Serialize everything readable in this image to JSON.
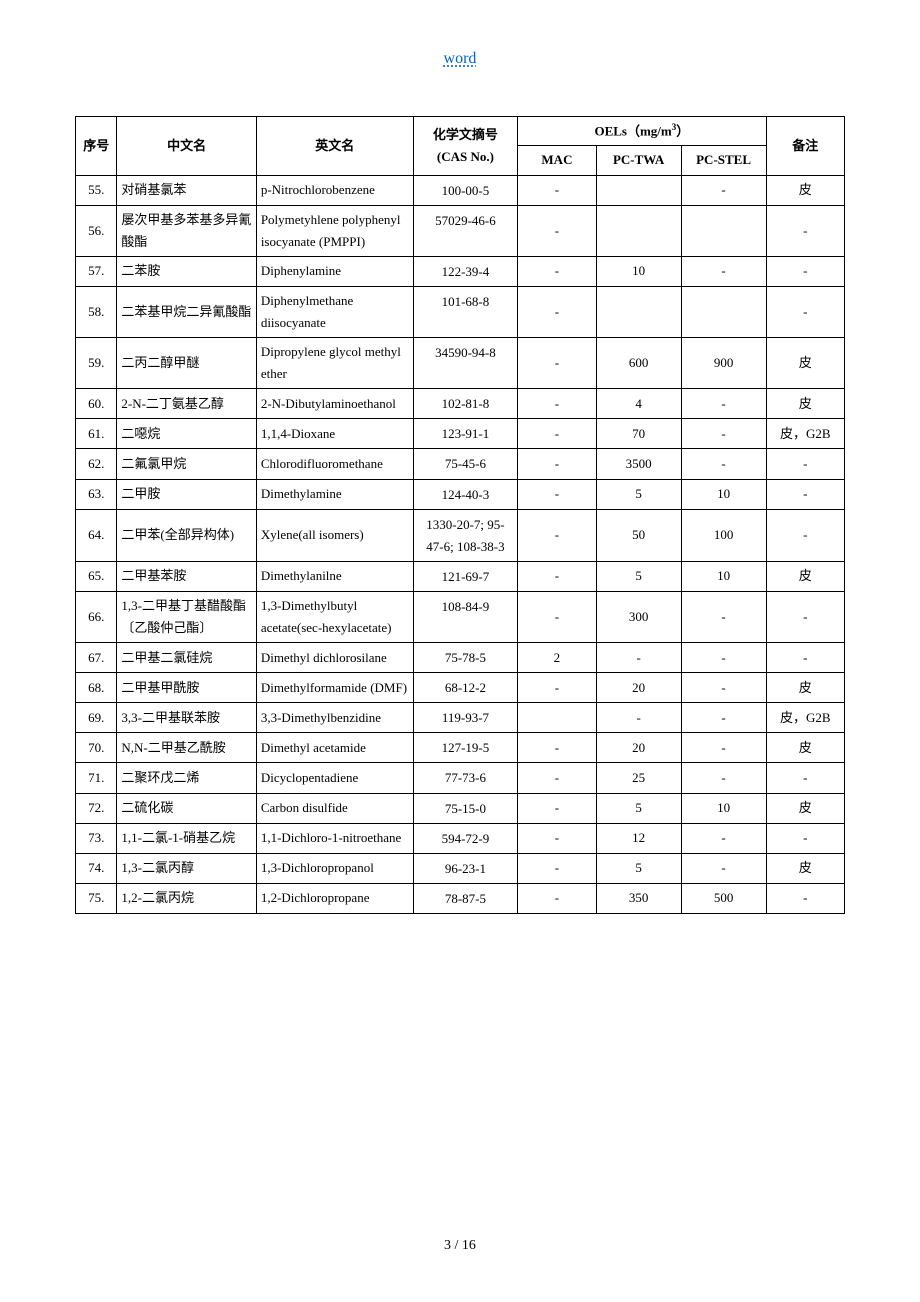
{
  "header_link": "word",
  "footer": "3  / 16",
  "table": {
    "columns": {
      "seq": "序号",
      "cn": "中文名",
      "en": "英文名",
      "cas": "化学文摘号 (CAS No.)",
      "oels": "OELs（mg/m³）",
      "mac": "MAC",
      "twa": "PC-TWA",
      "stel": "PC-STEL",
      "note": "备注"
    },
    "rows": [
      {
        "seq": "55.",
        "cn": "对硝基氯苯",
        "en": "p-Nitrochlorobenzene",
        "cas": "100-00-5",
        "mac": "-",
        "twa": "",
        "stel": "-",
        "note": "皮"
      },
      {
        "seq": "56.",
        "cn": "屡次甲基多苯基多异氰酸酯",
        "en": "Polymetyhlene polyphenyl isocyanate (PMPPI)",
        "cas": "57029-46-6",
        "mac": "-",
        "twa": "",
        "stel": "",
        "note": "-"
      },
      {
        "seq": "57.",
        "cn": "二苯胺",
        "en": "Diphenylamine",
        "cas": "122-39-4",
        "mac": "-",
        "twa": "10",
        "stel": "-",
        "note": "-"
      },
      {
        "seq": "58.",
        "cn": "二苯基甲烷二异氰酸酯",
        "en": "Diphenylmethane diisocyanate",
        "cas": "101-68-8",
        "mac": "-",
        "twa": "",
        "stel": "",
        "note": "-"
      },
      {
        "seq": "59.",
        "cn": "二丙二醇甲醚",
        "en": "Dipropylene glycol methyl ether",
        "cas": "34590-94-8",
        "mac": "-",
        "twa": "600",
        "stel": "900",
        "note": "皮"
      },
      {
        "seq": "60.",
        "cn": "2-N-二丁氨基乙醇",
        "en": "2-N-Dibutylaminoethanol",
        "cas": "102-81-8",
        "mac": "-",
        "twa": "4",
        "stel": "-",
        "note": "皮"
      },
      {
        "seq": "61.",
        "cn": "二噁烷",
        "en": "1,1,4-Dioxane",
        "cas": "123-91-1",
        "mac": "-",
        "twa": "70",
        "stel": "-",
        "note": "皮，G2B"
      },
      {
        "seq": "62.",
        "cn": "二氟氯甲烷",
        "en": "Chlorodifluoromethane",
        "cas": "75-45-6",
        "mac": "-",
        "twa": "3500",
        "stel": "-",
        "note": "-"
      },
      {
        "seq": "63.",
        "cn": "二甲胺",
        "en": "Dimethylamine",
        "cas": "124-40-3",
        "mac": "-",
        "twa": "5",
        "stel": "10",
        "note": "-"
      },
      {
        "seq": "64.",
        "cn": "二甲苯(全部异构体)",
        "en": "Xylene(all isomers)",
        "cas": "1330-20-7; 95-47-6; 108-38-3",
        "mac": "-",
        "twa": "50",
        "stel": "100",
        "note": "-"
      },
      {
        "seq": "65.",
        "cn": "二甲基苯胺",
        "en": "Dimethylanilne",
        "cas": "121-69-7",
        "mac": "-",
        "twa": "5",
        "stel": "10",
        "note": "皮"
      },
      {
        "seq": "66.",
        "cn": "1,3-二甲基丁基醋酸酯〔乙酸仲己酯〕",
        "en": "1,3-Dimethylbutyl acetate(sec-hexylacetate)",
        "cas": "108-84-9",
        "mac": "-",
        "twa": "300",
        "stel": "-",
        "note": "-"
      },
      {
        "seq": "67.",
        "cn": "二甲基二氯硅烷",
        "en": "Dimethyl dichlorosilane",
        "cas": "75-78-5",
        "mac": "2",
        "twa": "-",
        "stel": "-",
        "note": "-"
      },
      {
        "seq": "68.",
        "cn": "二甲基甲酰胺",
        "en": "Dimethylformamide (DMF)",
        "cas": "68-12-2",
        "mac": "-",
        "twa": "20",
        "stel": "-",
        "note": "皮"
      },
      {
        "seq": "69.",
        "cn": "3,3-二甲基联苯胺",
        "en": "3,3-Dimethylbenzidine",
        "cas": "119-93-7",
        "mac": "",
        "twa": "-",
        "stel": "-",
        "note": "皮，G2B"
      },
      {
        "seq": "70.",
        "cn": "N,N-二甲基乙酰胺",
        "en": "Dimethyl acetamide",
        "cas": "127-19-5",
        "mac": "-",
        "twa": "20",
        "stel": "-",
        "note": "皮"
      },
      {
        "seq": "71.",
        "cn": "二聚环戊二烯",
        "en": "Dicyclopentadiene",
        "cas": "77-73-6",
        "mac": "-",
        "twa": "25",
        "stel": "-",
        "note": "-"
      },
      {
        "seq": "72.",
        "cn": "二硫化碳",
        "en": "Carbon disulfide",
        "cas": "75-15-0",
        "mac": "-",
        "twa": "5",
        "stel": "10",
        "note": "皮"
      },
      {
        "seq": "73.",
        "cn": "1,1-二氯-1-硝基乙烷",
        "en": "1,1-Dichloro-1-nitroethane",
        "cas": "594-72-9",
        "mac": "-",
        "twa": "12",
        "stel": "-",
        "note": "-"
      },
      {
        "seq": "74.",
        "cn": "1,3-二氯丙醇",
        "en": "1,3-Dichloropropanol",
        "cas": "96-23-1",
        "mac": "-",
        "twa": "5",
        "stel": "-",
        "note": "皮"
      },
      {
        "seq": "75.",
        "cn": "1,2-二氯丙烷",
        "en": "1,2-Dichloropropane",
        "cas": "78-87-5",
        "mac": "-",
        "twa": "350",
        "stel": "500",
        "note": "-"
      }
    ]
  }
}
